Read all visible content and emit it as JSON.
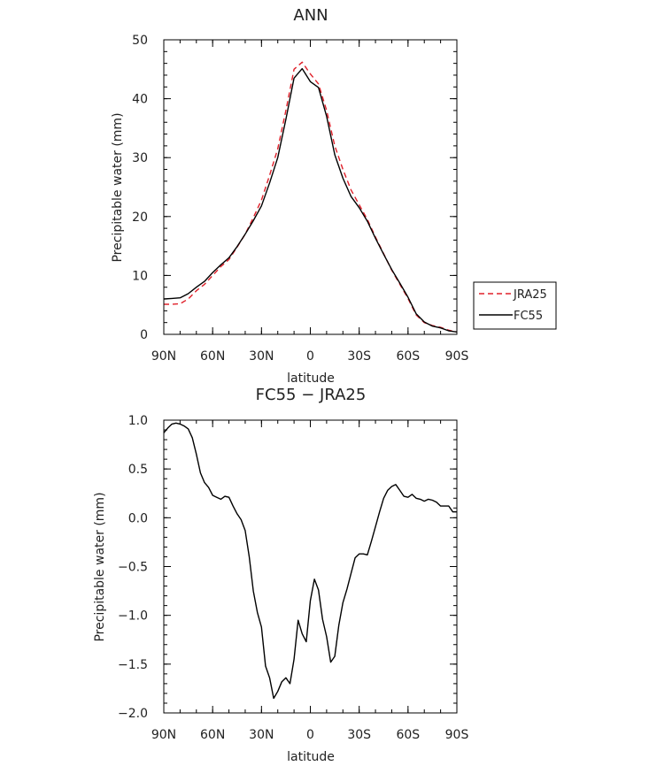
{
  "chart_data": [
    {
      "type": "line",
      "title": "ANN",
      "xlabel": "latitude",
      "ylabel": "Precipitable water (mm)",
      "xlim": [
        90,
        -90
      ],
      "ylim": [
        0,
        50
      ],
      "x_ticks": [
        90,
        60,
        30,
        0,
        -30,
        -60,
        -90
      ],
      "x_tick_labels": [
        "90N",
        "60N",
        "30N",
        "0",
        "30S",
        "60S",
        "90S"
      ],
      "y_ticks": [
        0,
        10,
        20,
        30,
        40,
        50
      ],
      "y_tick_labels": [
        "0",
        "10",
        "20",
        "30",
        "40",
        "50"
      ],
      "legend": {
        "placement": "right",
        "entries": [
          "JRA25",
          "FC55"
        ]
      },
      "series": [
        {
          "name": "JRA25",
          "color": "#e0202a",
          "dash": "dashed",
          "x": [
            90,
            85,
            80,
            75,
            70,
            65,
            60,
            55,
            50,
            45,
            40,
            35,
            30,
            25,
            20,
            15,
            10,
            5,
            0,
            -5,
            -10,
            -15,
            -20,
            -25,
            -30,
            -35,
            -40,
            -45,
            -50,
            -55,
            -60,
            -65,
            -70,
            -75,
            -80,
            -85,
            -90
          ],
          "y": [
            5.1,
            5.1,
            5.2,
            6.0,
            7.4,
            8.5,
            10.0,
            11.5,
            12.7,
            14.8,
            17.0,
            19.8,
            22.8,
            27.0,
            31.5,
            38.0,
            45.0,
            46.2,
            44.2,
            42.5,
            38.0,
            32.0,
            28.0,
            24.5,
            22.0,
            19.5,
            16.5,
            13.7,
            10.9,
            8.5,
            6.1,
            3.3,
            2.0,
            1.5,
            1.2,
            0.7,
            0.4
          ]
        },
        {
          "name": "FC55",
          "color": "#000000",
          "dash": "solid",
          "x": [
            90,
            85,
            80,
            75,
            70,
            65,
            60,
            55,
            50,
            45,
            40,
            35,
            30,
            25,
            20,
            15,
            10,
            5,
            0,
            -5,
            -10,
            -15,
            -20,
            -25,
            -30,
            -35,
            -40,
            -45,
            -50,
            -55,
            -60,
            -65,
            -70,
            -75,
            -80,
            -85,
            -90
          ],
          "y": [
            6.0,
            6.1,
            6.2,
            6.9,
            8.0,
            9.0,
            10.5,
            11.8,
            13.0,
            14.9,
            17.0,
            19.3,
            21.8,
            25.7,
            30.0,
            36.5,
            43.5,
            45.1,
            42.9,
            41.9,
            37.0,
            30.5,
            26.5,
            23.4,
            21.5,
            19.2,
            16.3,
            13.6,
            11.0,
            8.7,
            6.3,
            3.5,
            2.1,
            1.4,
            1.1,
            0.6,
            0.4
          ]
        }
      ]
    },
    {
      "type": "line",
      "title": "FC55 − JRA25",
      "xlabel": "latitude",
      "ylabel": "Precipitable water (mm)",
      "xlim": [
        90,
        -90
      ],
      "ylim": [
        -2.0,
        1.0
      ],
      "x_ticks": [
        90,
        60,
        30,
        0,
        -30,
        -60,
        -90
      ],
      "x_tick_labels": [
        "90N",
        "60N",
        "30N",
        "0",
        "30S",
        "60S",
        "90S"
      ],
      "y_ticks": [
        1.0,
        0.5,
        0.0,
        -0.5,
        -1.0,
        -1.5,
        -2.0
      ],
      "y_tick_labels": [
        "1.0",
        "0.5",
        "0.0",
        "−0.5",
        "−1.0",
        "−1.5",
        "−2.0"
      ],
      "series": [
        {
          "color": "#000000",
          "dash": "solid",
          "x": [
            90,
            87.5,
            85,
            82.5,
            80,
            77.5,
            75,
            72.5,
            70,
            67.5,
            65,
            62.5,
            60,
            57.5,
            55,
            52.5,
            50,
            47.5,
            45,
            42.5,
            40,
            37.5,
            35,
            32.5,
            30,
            27.5,
            25,
            22.5,
            20,
            17.5,
            15,
            12.5,
            10,
            7.5,
            5,
            2.5,
            0,
            -2.5,
            -5,
            -7.5,
            -10,
            -12.5,
            -15,
            -17.5,
            -20,
            -22.5,
            -25,
            -27.5,
            -30,
            -32.5,
            -35,
            -37.5,
            -40,
            -42.5,
            -45,
            -47.5,
            -50,
            -52.5,
            -55,
            -57.5,
            -60,
            -62.5,
            -65,
            -67.5,
            -70,
            -72.5,
            -75,
            -77.5,
            -80,
            -82.5,
            -85,
            -87.5,
            -90
          ],
          "y": [
            0.87,
            0.92,
            0.96,
            0.97,
            0.96,
            0.94,
            0.91,
            0.82,
            0.65,
            0.46,
            0.36,
            0.31,
            0.23,
            0.21,
            0.19,
            0.22,
            0.21,
            0.12,
            0.04,
            -0.02,
            -0.13,
            -0.4,
            -0.75,
            -0.97,
            -1.12,
            -1.52,
            -1.64,
            -1.85,
            -1.78,
            -1.68,
            -1.64,
            -1.7,
            -1.45,
            -1.05,
            -1.19,
            -1.27,
            -0.85,
            -0.63,
            -0.74,
            -1.04,
            -1.22,
            -1.48,
            -1.42,
            -1.1,
            -0.87,
            -0.73,
            -0.57,
            -0.41,
            -0.37,
            -0.37,
            -0.38,
            -0.24,
            -0.09,
            0.06,
            0.2,
            0.28,
            0.32,
            0.34,
            0.28,
            0.22,
            0.21,
            0.24,
            0.2,
            0.19,
            0.17,
            0.19,
            0.18,
            0.16,
            0.12,
            0.12,
            0.12,
            0.06,
            0.06
          ]
        }
      ]
    }
  ]
}
